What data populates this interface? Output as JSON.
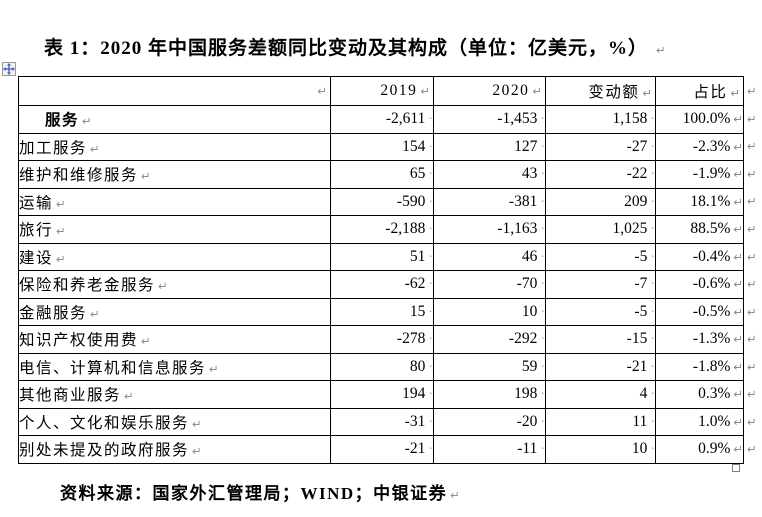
{
  "document": {
    "title": "表 1：2020 年中国服务差额同比变动及其构成（单位：亿美元，%）",
    "source_note": "资料来源：国家外汇管理局；WIND；中银证券"
  },
  "formatting_marks": {
    "paragraph_mark": "↵",
    "space_mark": "·"
  },
  "table": {
    "columns": [
      "",
      "2019",
      "2020",
      "变动额",
      "占比"
    ],
    "rows": [
      {
        "label": "服务",
        "bold": true,
        "v2019": "-2,611",
        "v2020": "-1,453",
        "change": "1,158",
        "share": "100.0%"
      },
      {
        "label": "加工服务",
        "bold": false,
        "v2019": "154",
        "v2020": "127",
        "change": "-27",
        "share": "-2.3%"
      },
      {
        "label": "维护和维修服务",
        "bold": false,
        "v2019": "65",
        "v2020": "43",
        "change": "-22",
        "share": "-1.9%"
      },
      {
        "label": "运输",
        "bold": false,
        "v2019": "-590",
        "v2020": "-381",
        "change": "209",
        "share": "18.1%"
      },
      {
        "label": "旅行",
        "bold": false,
        "v2019": "-2,188",
        "v2020": "-1,163",
        "change": "1,025",
        "share": "88.5%"
      },
      {
        "label": "建设",
        "bold": false,
        "v2019": "51",
        "v2020": "46",
        "change": "-5",
        "share": "-0.4%"
      },
      {
        "label": "保险和养老金服务",
        "bold": false,
        "v2019": "-62",
        "v2020": "-70",
        "change": "-7",
        "share": "-0.6%"
      },
      {
        "label": "金融服务",
        "bold": false,
        "v2019": "15",
        "v2020": "10",
        "change": "-5",
        "share": "-0.5%"
      },
      {
        "label": "知识产权使用费",
        "bold": false,
        "v2019": "-278",
        "v2020": "-292",
        "change": "-15",
        "share": "-1.3%"
      },
      {
        "label": "电信、计算机和信息服务",
        "bold": false,
        "v2019": "80",
        "v2020": "59",
        "change": "-21",
        "share": "-1.8%"
      },
      {
        "label": "其他商业服务",
        "bold": false,
        "v2019": "194",
        "v2020": "198",
        "change": "4",
        "share": "0.3%"
      },
      {
        "label": "个人、文化和娱乐服务",
        "bold": false,
        "v2019": "-31",
        "v2020": "-20",
        "change": "11",
        "share": "1.0%"
      },
      {
        "label": "别处未提及的政府服务",
        "bold": false,
        "v2019": "-21",
        "v2020": "-11",
        "change": "10",
        "share": "0.9%"
      }
    ]
  }
}
